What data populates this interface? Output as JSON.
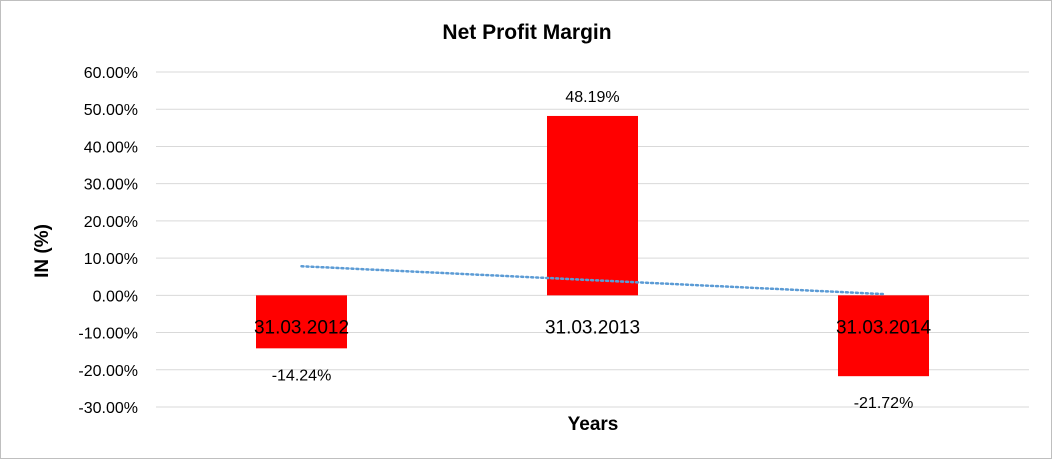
{
  "chart_data": {
    "type": "bar",
    "title": "Net Profit Margin",
    "xlabel": "Years",
    "ylabel": "IN (%)",
    "categories": [
      "31.03.2012",
      "31.03.2013",
      "31.03.2014"
    ],
    "series": [
      {
        "values": [
          -14.24,
          48.19,
          -21.72
        ],
        "data_labels": [
          "-14.24%",
          "48.19%",
          "-21.72%"
        ],
        "color": "#ff0000"
      }
    ],
    "trendline": {
      "type": "linear",
      "style": "dotted",
      "color": "#5b9bd5"
    },
    "ylim": [
      -30,
      60
    ],
    "yticks": [
      60,
      50,
      40,
      30,
      20,
      10,
      0,
      -10,
      -20,
      -30
    ],
    "ytick_labels": [
      "60.00%",
      "50.00%",
      "40.00%",
      "30.00%",
      "20.00%",
      "10.00%",
      "0.00%",
      "-10.00%",
      "-20.00%",
      "-30.00%"
    ],
    "grid": true,
    "legend": "none",
    "colors": {
      "bar": "#ff0000",
      "grid": "#d9d9d9",
      "trendline": "#5b9bd5",
      "border": "#bfbfbf"
    }
  }
}
